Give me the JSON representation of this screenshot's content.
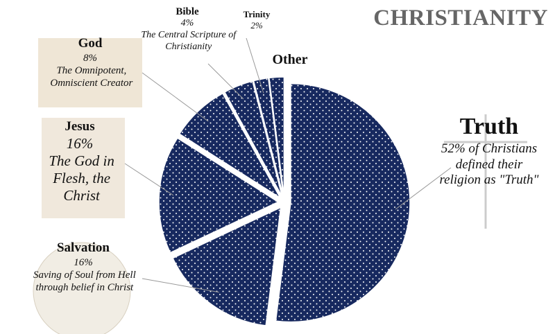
{
  "chart_data": {
    "type": "pie",
    "title": "CHRISTIANITY",
    "categories": [
      "Truth",
      "Salvation",
      "Jesus",
      "God",
      "Bible",
      "Trinity",
      "Other"
    ],
    "values": [
      52,
      16,
      16,
      8,
      4,
      2,
      2
    ],
    "value_labels": [
      "52%",
      "16%",
      "16%",
      "8%",
      "4%",
      "2%",
      null
    ],
    "descriptions": [
      "of Christians defined their religion as \"Truth\"",
      "Saving of Soul from Hell through belief in Christ",
      "The God in Flesh, the Christ",
      "The Omnipotent, Omniscient Creator",
      "The Central Scripture of Christianity",
      null,
      null
    ],
    "color": "#17295f"
  }
}
